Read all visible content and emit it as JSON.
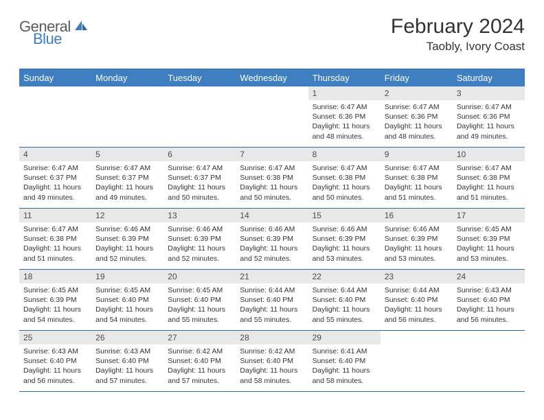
{
  "logo": {
    "text_gray": "General",
    "text_blue": "Blue",
    "icon_color": "#3e7fc1"
  },
  "title": "February 2024",
  "location": "Taobly, Ivory Coast",
  "colors": {
    "header_bg": "#3e7fc1",
    "header_text": "#ffffff",
    "daynum_bg": "#e8e8e8",
    "daynum_text": "#4a4a4a",
    "border": "#2b6aaa",
    "body_text": "#333333",
    "logo_gray": "#5b5b5b",
    "logo_blue": "#3e7fc1"
  },
  "day_headers": [
    "Sunday",
    "Monday",
    "Tuesday",
    "Wednesday",
    "Thursday",
    "Friday",
    "Saturday"
  ],
  "weeks": [
    [
      null,
      null,
      null,
      null,
      {
        "num": "1",
        "sunrise": "6:47 AM",
        "sunset": "6:36 PM",
        "daylight": "11 hours and 48 minutes."
      },
      {
        "num": "2",
        "sunrise": "6:47 AM",
        "sunset": "6:36 PM",
        "daylight": "11 hours and 48 minutes."
      },
      {
        "num": "3",
        "sunrise": "6:47 AM",
        "sunset": "6:36 PM",
        "daylight": "11 hours and 49 minutes."
      }
    ],
    [
      {
        "num": "4",
        "sunrise": "6:47 AM",
        "sunset": "6:37 PM",
        "daylight": "11 hours and 49 minutes."
      },
      {
        "num": "5",
        "sunrise": "6:47 AM",
        "sunset": "6:37 PM",
        "daylight": "11 hours and 49 minutes."
      },
      {
        "num": "6",
        "sunrise": "6:47 AM",
        "sunset": "6:37 PM",
        "daylight": "11 hours and 50 minutes."
      },
      {
        "num": "7",
        "sunrise": "6:47 AM",
        "sunset": "6:38 PM",
        "daylight": "11 hours and 50 minutes."
      },
      {
        "num": "8",
        "sunrise": "6:47 AM",
        "sunset": "6:38 PM",
        "daylight": "11 hours and 50 minutes."
      },
      {
        "num": "9",
        "sunrise": "6:47 AM",
        "sunset": "6:38 PM",
        "daylight": "11 hours and 51 minutes."
      },
      {
        "num": "10",
        "sunrise": "6:47 AM",
        "sunset": "6:38 PM",
        "daylight": "11 hours and 51 minutes."
      }
    ],
    [
      {
        "num": "11",
        "sunrise": "6:47 AM",
        "sunset": "6:38 PM",
        "daylight": "11 hours and 51 minutes."
      },
      {
        "num": "12",
        "sunrise": "6:46 AM",
        "sunset": "6:39 PM",
        "daylight": "11 hours and 52 minutes."
      },
      {
        "num": "13",
        "sunrise": "6:46 AM",
        "sunset": "6:39 PM",
        "daylight": "11 hours and 52 minutes."
      },
      {
        "num": "14",
        "sunrise": "6:46 AM",
        "sunset": "6:39 PM",
        "daylight": "11 hours and 52 minutes."
      },
      {
        "num": "15",
        "sunrise": "6:46 AM",
        "sunset": "6:39 PM",
        "daylight": "11 hours and 53 minutes."
      },
      {
        "num": "16",
        "sunrise": "6:46 AM",
        "sunset": "6:39 PM",
        "daylight": "11 hours and 53 minutes."
      },
      {
        "num": "17",
        "sunrise": "6:45 AM",
        "sunset": "6:39 PM",
        "daylight": "11 hours and 53 minutes."
      }
    ],
    [
      {
        "num": "18",
        "sunrise": "6:45 AM",
        "sunset": "6:39 PM",
        "daylight": "11 hours and 54 minutes."
      },
      {
        "num": "19",
        "sunrise": "6:45 AM",
        "sunset": "6:40 PM",
        "daylight": "11 hours and 54 minutes."
      },
      {
        "num": "20",
        "sunrise": "6:45 AM",
        "sunset": "6:40 PM",
        "daylight": "11 hours and 55 minutes."
      },
      {
        "num": "21",
        "sunrise": "6:44 AM",
        "sunset": "6:40 PM",
        "daylight": "11 hours and 55 minutes."
      },
      {
        "num": "22",
        "sunrise": "6:44 AM",
        "sunset": "6:40 PM",
        "daylight": "11 hours and 55 minutes."
      },
      {
        "num": "23",
        "sunrise": "6:44 AM",
        "sunset": "6:40 PM",
        "daylight": "11 hours and 56 minutes."
      },
      {
        "num": "24",
        "sunrise": "6:43 AM",
        "sunset": "6:40 PM",
        "daylight": "11 hours and 56 minutes."
      }
    ],
    [
      {
        "num": "25",
        "sunrise": "6:43 AM",
        "sunset": "6:40 PM",
        "daylight": "11 hours and 56 minutes."
      },
      {
        "num": "26",
        "sunrise": "6:43 AM",
        "sunset": "6:40 PM",
        "daylight": "11 hours and 57 minutes."
      },
      {
        "num": "27",
        "sunrise": "6:42 AM",
        "sunset": "6:40 PM",
        "daylight": "11 hours and 57 minutes."
      },
      {
        "num": "28",
        "sunrise": "6:42 AM",
        "sunset": "6:40 PM",
        "daylight": "11 hours and 58 minutes."
      },
      {
        "num": "29",
        "sunrise": "6:41 AM",
        "sunset": "6:40 PM",
        "daylight": "11 hours and 58 minutes."
      },
      null,
      null
    ]
  ],
  "labels": {
    "sunrise": "Sunrise: ",
    "sunset": "Sunset: ",
    "daylight": "Daylight: "
  }
}
